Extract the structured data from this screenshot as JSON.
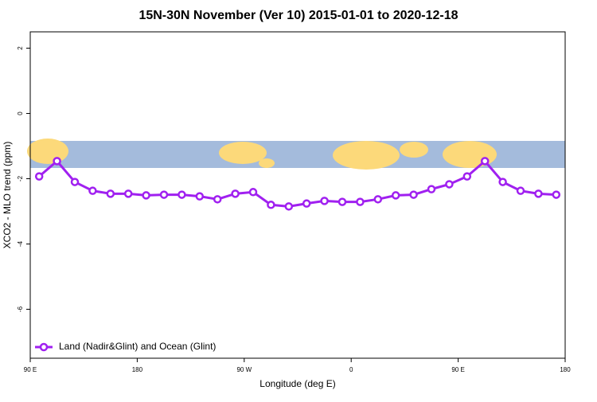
{
  "chart_data": {
    "type": "line",
    "title": "15N-30N November (Ver 10)   2015-01-01 to 2020-12-18",
    "x_label": "Longitude (deg E)",
    "y_label": "XCO2 - MLO trend (ppm)",
    "x": [
      97.5,
      112.5,
      127.5,
      142.5,
      157.5,
      172.5,
      187.5,
      202.5,
      217.5,
      232.5,
      247.5,
      262.5,
      277.5,
      292.5,
      307.5,
      322.5,
      337.5,
      352.5,
      367.5,
      382.5,
      397.5,
      412.5,
      427.5,
      442.5,
      457.5,
      472.5,
      487.5,
      502.5,
      517.5,
      532.5
    ],
    "series": [
      {
        "name": "Land (Nadir&Glint) and Ocean (Glint)",
        "color": "#a020f0",
        "values": [
          -1.93,
          -1.46,
          -2.1,
          -2.37,
          -2.46,
          -2.46,
          -2.51,
          -2.49,
          -2.49,
          -2.54,
          -2.63,
          -2.46,
          -2.41,
          -2.8,
          -2.85,
          -2.76,
          -2.68,
          -2.71,
          -2.71,
          -2.63,
          -2.51,
          -2.49,
          -2.32,
          -2.17,
          -1.93,
          -1.46,
          -2.1,
          -2.37,
          -2.46,
          -2.49
        ]
      }
    ],
    "xlim": [
      90,
      540
    ],
    "xticks": [
      {
        "value": 90,
        "label": "90 E"
      },
      180,
      {
        "value": 270,
        "label": "90 W"
      },
      {
        "value": 360,
        "label": "0"
      },
      {
        "value": 450,
        "label": "90 E"
      },
      {
        "value": 540,
        "label": "180"
      }
    ],
    "ylim": [
      -7.5,
      2.5
    ],
    "yticks": [
      2,
      0,
      -2,
      -4,
      -6
    ],
    "legend": "bottom-left"
  }
}
